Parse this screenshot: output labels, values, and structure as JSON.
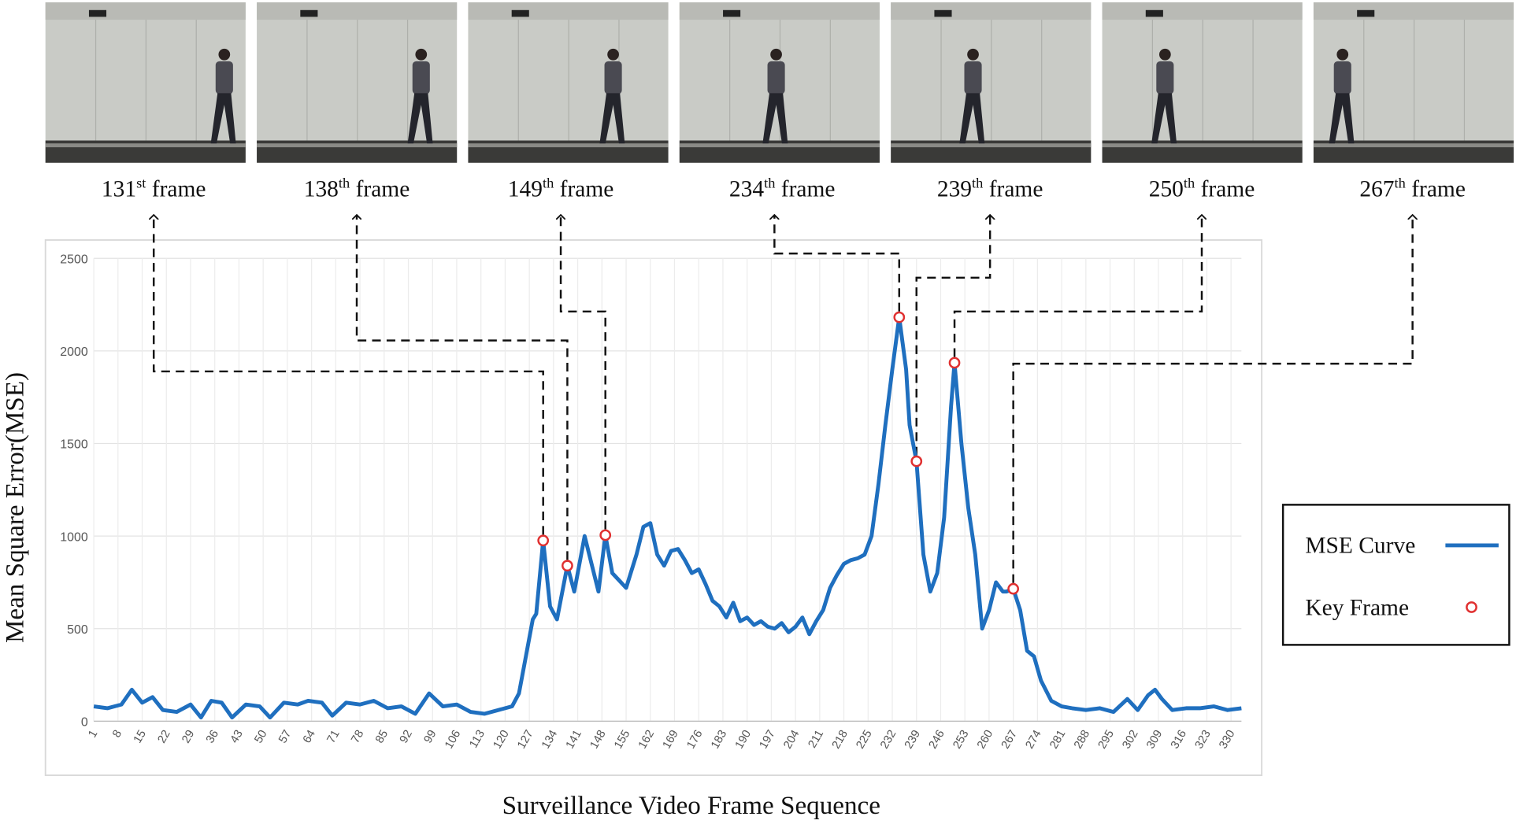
{
  "frames": [
    {
      "number": "131",
      "suffix": "st",
      "text": "frame"
    },
    {
      "number": "138",
      "suffix": "th",
      "text": "frame"
    },
    {
      "number": "149",
      "suffix": "th",
      "text": "frame"
    },
    {
      "number": "234",
      "suffix": "th",
      "text": "frame"
    },
    {
      "number": "239",
      "suffix": "th",
      "text": "frame"
    },
    {
      "number": "250",
      "suffix": "th",
      "text": "frame"
    },
    {
      "number": "267",
      "suffix": "th",
      "text": "frame"
    }
  ],
  "chart_data": {
    "type": "line",
    "x_label": "Surveillance Video Frame Sequence",
    "y_label": "Mean Square Error(MSE)",
    "xlim": [
      1,
      333
    ],
    "ylim": [
      0,
      2500
    ],
    "yticks": [
      0,
      500,
      1000,
      1500,
      2000,
      2500
    ],
    "xticks": [
      1,
      8,
      15,
      22,
      29,
      36,
      43,
      50,
      57,
      64,
      71,
      78,
      85,
      92,
      99,
      106,
      113,
      120,
      127,
      134,
      141,
      148,
      155,
      162,
      169,
      176,
      183,
      190,
      197,
      204,
      211,
      218,
      225,
      232,
      239,
      246,
      253,
      260,
      267,
      274,
      281,
      288,
      295,
      302,
      309,
      316,
      323,
      330
    ],
    "grid": true,
    "legend": "right",
    "series": [
      {
        "name": "MSE Curve",
        "color": "#1f6fbf",
        "x": [
          1,
          5,
          9,
          12,
          15,
          18,
          21,
          25,
          29,
          32,
          35,
          38,
          41,
          45,
          49,
          52,
          56,
          60,
          63,
          67,
          70,
          74,
          78,
          82,
          86,
          90,
          94,
          98,
          102,
          106,
          110,
          114,
          118,
          122,
          124,
          126,
          128,
          129,
          131,
          133,
          135,
          138,
          140,
          143,
          145,
          147,
          149,
          151,
          153,
          155,
          158,
          160,
          162,
          164,
          166,
          168,
          170,
          172,
          174,
          176,
          178,
          180,
          182,
          184,
          186,
          188,
          190,
          192,
          194,
          196,
          198,
          200,
          202,
          204,
          206,
          208,
          210,
          212,
          214,
          216,
          218,
          220,
          222,
          224,
          226,
          228,
          230,
          232,
          234,
          236,
          237,
          239,
          241,
          243,
          245,
          247,
          249,
          250,
          252,
          254,
          256,
          258,
          260,
          262,
          264,
          265,
          267,
          269,
          271,
          273,
          275,
          278,
          281,
          284,
          288,
          292,
          296,
          300,
          303,
          306,
          308,
          310,
          313,
          317,
          321,
          325,
          329,
          333
        ],
        "values": [
          80,
          70,
          90,
          170,
          100,
          130,
          60,
          50,
          90,
          20,
          110,
          100,
          20,
          90,
          80,
          20,
          100,
          90,
          110,
          100,
          30,
          100,
          90,
          110,
          70,
          80,
          40,
          150,
          80,
          90,
          50,
          40,
          60,
          80,
          150,
          350,
          550,
          580,
          976,
          620,
          550,
          840,
          700,
          1000,
          850,
          700,
          1005,
          800,
          760,
          720,
          900,
          1050,
          1070,
          900,
          840,
          920,
          930,
          870,
          800,
          820,
          740,
          650,
          620,
          560,
          640,
          540,
          560,
          520,
          540,
          510,
          500,
          530,
          480,
          510,
          560,
          470,
          540,
          600,
          720,
          790,
          850,
          870,
          880,
          900,
          1000,
          1280,
          1600,
          1900,
          2182,
          1900,
          1600,
          1404,
          900,
          700,
          800,
          1100,
          1700,
          1936,
          1500,
          1150,
          900,
          500,
          600,
          750,
          700,
          700,
          715,
          600,
          380,
          350,
          220,
          110,
          80,
          70,
          60,
          70,
          50,
          120,
          60,
          140,
          170,
          120,
          60,
          70,
          70,
          80,
          60,
          70
        ]
      },
      {
        "name": "Key Frame",
        "type": "scatter",
        "color": "#e03030",
        "x": [
          131,
          138,
          149,
          234,
          239,
          250,
          267
        ],
        "values": [
          976,
          840,
          1005,
          2182,
          1404,
          1936,
          715
        ]
      }
    ]
  }
}
